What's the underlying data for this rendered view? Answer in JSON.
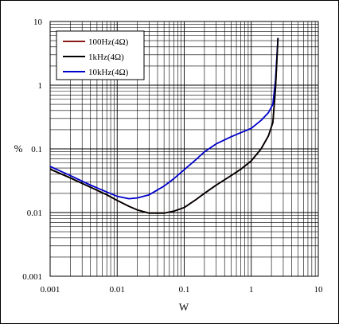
{
  "chart_data": {
    "type": "line",
    "xlabel": "W",
    "ylabel": "%",
    "x_scale": "log",
    "y_scale": "log",
    "xlim": [
      0.001,
      10
    ],
    "ylim": [
      0.001,
      10
    ],
    "grid": true,
    "legend_position": "top-left",
    "x_tick_labels": [
      "0.001",
      "0.01",
      "0.1",
      "1",
      "10"
    ],
    "y_tick_labels": [
      "10",
      "1",
      "0.1",
      "0.01",
      "0.001"
    ],
    "series": [
      {
        "name": "100Hz(4Ω)",
        "color": "#8b1a1a",
        "x": [
          0.001,
          0.002,
          0.004,
          0.007,
          0.01,
          0.015,
          0.02,
          0.03,
          0.05,
          0.07,
          0.1,
          0.15,
          0.2,
          0.3,
          0.5,
          0.7,
          1.0,
          1.4,
          1.8,
          2.1,
          2.3,
          2.5
        ],
        "y": [
          0.048,
          0.035,
          0.025,
          0.019,
          0.0155,
          0.0125,
          0.011,
          0.0098,
          0.0098,
          0.0105,
          0.012,
          0.016,
          0.02,
          0.027,
          0.038,
          0.048,
          0.065,
          0.1,
          0.16,
          0.26,
          0.9,
          5.5
        ]
      },
      {
        "name": "1kHz(4Ω)",
        "color": "#000000",
        "x": [
          0.001,
          0.002,
          0.004,
          0.007,
          0.01,
          0.015,
          0.02,
          0.03,
          0.05,
          0.07,
          0.1,
          0.15,
          0.2,
          0.3,
          0.5,
          0.7,
          1.0,
          1.4,
          1.8,
          2.1,
          2.3,
          2.5
        ],
        "y": [
          0.048,
          0.035,
          0.025,
          0.019,
          0.0155,
          0.0125,
          0.011,
          0.0098,
          0.0098,
          0.0105,
          0.012,
          0.016,
          0.02,
          0.027,
          0.038,
          0.048,
          0.065,
          0.1,
          0.16,
          0.26,
          0.9,
          5.5
        ]
      },
      {
        "name": "10kHz(4Ω)",
        "color": "#0000cc",
        "x": [
          0.001,
          0.002,
          0.004,
          0.007,
          0.01,
          0.015,
          0.02,
          0.03,
          0.05,
          0.07,
          0.1,
          0.15,
          0.2,
          0.3,
          0.5,
          0.7,
          1.0,
          1.4,
          1.8,
          2.1,
          2.3,
          2.5
        ],
        "y": [
          0.053,
          0.038,
          0.027,
          0.021,
          0.018,
          0.0165,
          0.017,
          0.019,
          0.026,
          0.034,
          0.047,
          0.068,
          0.09,
          0.12,
          0.155,
          0.18,
          0.21,
          0.28,
          0.37,
          0.5,
          1.2,
          5.5
        ]
      }
    ]
  }
}
